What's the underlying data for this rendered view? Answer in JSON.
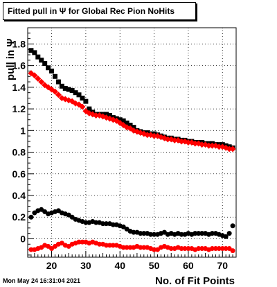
{
  "chart_data": {
    "type": "scatter",
    "title": "Fitted pull in  Ψ  for Global Rec Pion NoHits",
    "xlabel": "No. of Fit Points",
    "ylabel": "pull in  Ψ",
    "xlim": [
      13,
      74
    ],
    "ylim": [
      -0.17,
      1.95
    ],
    "x_ticks": [
      20,
      30,
      40,
      50,
      60,
      70
    ],
    "y_ticks": [
      0,
      0.2,
      0.4,
      0.6,
      0.8,
      1,
      1.2,
      1.4,
      1.6,
      1.8
    ],
    "x_tick_labels": [
      "20",
      "30",
      "40",
      "50",
      "60",
      "70"
    ],
    "y_tick_labels": [
      "0",
      "0.2",
      "0.4",
      "0.6",
      "0.8",
      "1",
      "1.2",
      "1.4",
      "1.6",
      "1.8"
    ],
    "grid": true,
    "x": [
      14,
      15,
      16,
      17,
      18,
      19,
      20,
      21,
      22,
      23,
      24,
      25,
      26,
      27,
      28,
      29,
      30,
      31,
      32,
      33,
      34,
      35,
      36,
      37,
      38,
      39,
      40,
      41,
      42,
      43,
      44,
      45,
      46,
      47,
      48,
      49,
      50,
      51,
      52,
      53,
      54,
      55,
      56,
      57,
      58,
      59,
      60,
      61,
      62,
      63,
      64,
      65,
      66,
      67,
      68,
      69,
      70,
      71,
      72,
      73
    ],
    "series": [
      {
        "color": "#000000",
        "marker": "square",
        "values": [
          1.74,
          1.72,
          1.68,
          1.65,
          1.62,
          1.58,
          1.55,
          1.5,
          1.45,
          1.41,
          1.39,
          1.38,
          1.37,
          1.35,
          1.33,
          1.3,
          1.27,
          1.2,
          1.17,
          1.15,
          1.15,
          1.15,
          1.15,
          1.14,
          1.12,
          1.11,
          1.1,
          1.09,
          1.07,
          1.05,
          1.03,
          1.0,
          0.99,
          0.98,
          0.98,
          0.97,
          0.97,
          0.96,
          0.95,
          0.94,
          0.93,
          0.93,
          0.92,
          0.92,
          0.91,
          0.91,
          0.9,
          0.9,
          0.89,
          0.89,
          0.89,
          0.88,
          0.88,
          0.88,
          0.87,
          0.87,
          0.87,
          0.86,
          0.85,
          0.84
        ]
      },
      {
        "color": "#ff0000",
        "marker": "diamond",
        "values": [
          1.53,
          1.51,
          1.48,
          1.45,
          1.42,
          1.4,
          1.38,
          1.36,
          1.33,
          1.3,
          1.29,
          1.28,
          1.27,
          1.25,
          1.24,
          1.22,
          1.18,
          1.16,
          1.15,
          1.14,
          1.14,
          1.13,
          1.12,
          1.11,
          1.1,
          1.09,
          1.07,
          1.05,
          1.03,
          1.02,
          1.0,
          0.99,
          0.98,
          0.97,
          0.96,
          0.96,
          0.95,
          0.95,
          0.94,
          0.93,
          0.92,
          0.92,
          0.91,
          0.91,
          0.9,
          0.9,
          0.89,
          0.89,
          0.88,
          0.88,
          0.87,
          0.87,
          0.86,
          0.86,
          0.86,
          0.85,
          0.85,
          0.84,
          0.83,
          0.83
        ]
      },
      {
        "color": "#000000",
        "marker": "circle",
        "values": [
          0.2,
          0.24,
          0.26,
          0.27,
          0.25,
          0.23,
          0.24,
          0.25,
          0.26,
          0.24,
          0.23,
          0.22,
          0.2,
          0.18,
          0.17,
          0.16,
          0.15,
          0.15,
          0.16,
          0.15,
          0.15,
          0.14,
          0.14,
          0.14,
          0.13,
          0.13,
          0.12,
          0.11,
          0.09,
          0.07,
          0.06,
          0.06,
          0.05,
          0.05,
          0.05,
          0.04,
          0.04,
          0.04,
          0.05,
          0.06,
          0.04,
          0.05,
          0.04,
          0.05,
          0.04,
          0.04,
          0.05,
          0.04,
          0.05,
          0.05,
          0.05,
          0.05,
          0.04,
          0.05,
          0.05,
          0.04,
          0.03,
          0.02,
          0.05,
          0.12
        ]
      },
      {
        "color": "#ff0000",
        "marker": "circle",
        "values": [
          -0.1,
          -0.1,
          -0.09,
          -0.08,
          -0.06,
          -0.07,
          -0.09,
          -0.07,
          -0.05,
          -0.04,
          -0.06,
          -0.07,
          -0.05,
          -0.04,
          -0.03,
          -0.03,
          -0.03,
          -0.04,
          -0.03,
          -0.04,
          -0.05,
          -0.05,
          -0.06,
          -0.06,
          -0.06,
          -0.06,
          -0.07,
          -0.08,
          -0.08,
          -0.08,
          -0.08,
          -0.07,
          -0.08,
          -0.08,
          -0.08,
          -0.09,
          -0.1,
          -0.1,
          -0.08,
          -0.07,
          -0.08,
          -0.09,
          -0.09,
          -0.08,
          -0.09,
          -0.09,
          -0.09,
          -0.09,
          -0.1,
          -0.09,
          -0.09,
          -0.09,
          -0.1,
          -0.09,
          -0.09,
          -0.09,
          -0.09,
          -0.09,
          -0.09,
          -0.11
        ]
      }
    ]
  },
  "footer": {
    "timestamp": "Mon May 24 16:31:04 2021"
  }
}
